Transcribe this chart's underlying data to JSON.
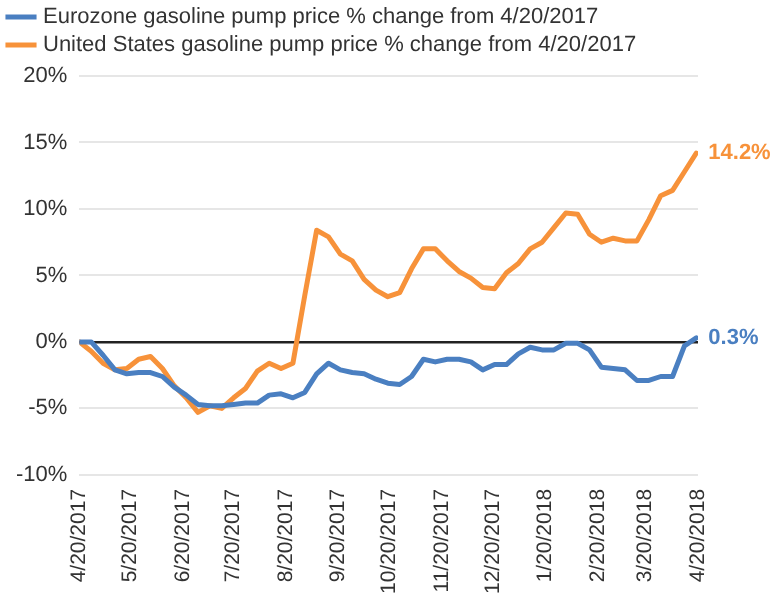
{
  "chart_data": {
    "type": "line",
    "legend": "top left",
    "grid": "y",
    "marker": "none",
    "line_style": "solid",
    "x": [
      "2017-04-20",
      "2017-04-27",
      "2017-05-04",
      "2017-05-11",
      "2017-05-18",
      "2017-05-25",
      "2017-06-01",
      "2017-06-08",
      "2017-06-15",
      "2017-06-22",
      "2017-06-29",
      "2017-07-06",
      "2017-07-13",
      "2017-07-20",
      "2017-07-27",
      "2017-08-03",
      "2017-08-10",
      "2017-08-17",
      "2017-08-24",
      "2017-08-31",
      "2017-09-07",
      "2017-09-14",
      "2017-09-21",
      "2017-09-28",
      "2017-10-05",
      "2017-10-12",
      "2017-10-19",
      "2017-10-26",
      "2017-11-02",
      "2017-11-09",
      "2017-11-16",
      "2017-11-23",
      "2017-11-30",
      "2017-12-07",
      "2017-12-14",
      "2017-12-21",
      "2017-12-28",
      "2018-01-04",
      "2018-01-11",
      "2018-01-18",
      "2018-01-25",
      "2018-02-01",
      "2018-02-08",
      "2018-02-15",
      "2018-02-22",
      "2018-03-01",
      "2018-03-08",
      "2018-03-15",
      "2018-03-22",
      "2018-03-29",
      "2018-04-05",
      "2018-04-12",
      "2018-04-19"
    ],
    "series": [
      {
        "name": "Eurozone gasoline pump price % change from 4/20/2017",
        "color": "#4a7fc1",
        "values": [
          0,
          0,
          -1.0,
          -2.1,
          -2.4,
          -2.3,
          -2.3,
          -2.6,
          -3.4,
          -4.0,
          -4.7,
          -4.8,
          -4.8,
          -4.7,
          -4.6,
          -4.6,
          -4.0,
          -3.9,
          -4.2,
          -3.8,
          -2.4,
          -1.6,
          -2.1,
          -2.3,
          -2.4,
          -2.8,
          -3.1,
          -3.2,
          -2.6,
          -1.3,
          -1.5,
          -1.3,
          -1.3,
          -1.5,
          -2.1,
          -1.7,
          -1.7,
          -0.9,
          -0.4,
          -0.6,
          -0.6,
          -0.1,
          -0.1,
          -0.6,
          -1.9,
          -2.0,
          -2.1,
          -2.9,
          -2.9,
          -2.6,
          -2.6,
          -0.3,
          0.3
        ],
        "value_labels": [
          null,
          null,
          null,
          null,
          null,
          null,
          null,
          null,
          null,
          null,
          null,
          null,
          null,
          null,
          null,
          null,
          null,
          null,
          null,
          null,
          null,
          null,
          null,
          null,
          null,
          null,
          null,
          null,
          null,
          null,
          null,
          null,
          null,
          null,
          null,
          null,
          null,
          null,
          null,
          null,
          null,
          null,
          null,
          null,
          null,
          null,
          null,
          null,
          null,
          null,
          null,
          null,
          "0.3%"
        ]
      },
      {
        "name": "United States gasoline pump price % change from 4/20/2017",
        "color": "#f7923a",
        "values": [
          0,
          -0.7,
          -1.6,
          -2.1,
          -2.0,
          -1.3,
          -1.1,
          -2.0,
          -3.3,
          -4.2,
          -5.3,
          -4.8,
          -5.0,
          -4.2,
          -3.5,
          -2.2,
          -1.6,
          -2.0,
          -1.6,
          3.5,
          8.4,
          7.9,
          6.6,
          6.1,
          4.7,
          3.9,
          3.4,
          3.7,
          5.5,
          7.0,
          7.0,
          6.1,
          5.3,
          4.8,
          4.1,
          4.0,
          5.2,
          5.9,
          7.0,
          7.5,
          8.6,
          9.7,
          9.6,
          8.1,
          7.5,
          7.8,
          7.6,
          7.6,
          9.2,
          11.0,
          11.4,
          12.8,
          14.2
        ],
        "value_labels": [
          null,
          null,
          null,
          null,
          null,
          null,
          null,
          null,
          null,
          null,
          null,
          null,
          null,
          null,
          null,
          null,
          null,
          null,
          null,
          null,
          null,
          null,
          null,
          null,
          null,
          null,
          null,
          null,
          null,
          null,
          null,
          null,
          null,
          null,
          null,
          null,
          null,
          null,
          null,
          null,
          null,
          null,
          null,
          null,
          null,
          null,
          null,
          null,
          null,
          null,
          null,
          null,
          "14.2%"
        ]
      }
    ],
    "xlim": [
      "2017-04-20",
      "2018-04-20"
    ],
    "xticks": [
      {
        "value": "2017-04-20",
        "label": "4/20/2017"
      },
      {
        "value": "2017-05-20",
        "label": "5/20/2017"
      },
      {
        "value": "2017-06-20",
        "label": "6/20/2017"
      },
      {
        "value": "2017-07-20",
        "label": "7/20/2017"
      },
      {
        "value": "2017-08-20",
        "label": "8/20/2017"
      },
      {
        "value": "2017-09-20",
        "label": "9/20/2017"
      },
      {
        "value": "2017-10-20",
        "label": "10/20/2017"
      },
      {
        "value": "2017-11-20",
        "label": "11/20/2017"
      },
      {
        "value": "2017-12-20",
        "label": "12/20/2017"
      },
      {
        "value": "2018-01-20",
        "label": "1/20/2018"
      },
      {
        "value": "2018-02-20",
        "label": "2/20/2018"
      },
      {
        "value": "2018-03-20",
        "label": "3/20/2018"
      },
      {
        "value": "2018-04-20",
        "label": "4/20/2018"
      }
    ],
    "ylim": [
      -10,
      20
    ],
    "yticks": [
      {
        "value": -10,
        "label": "-10%"
      },
      {
        "value": -5,
        "label": "-5%"
      },
      {
        "value": 0,
        "label": "0%"
      },
      {
        "value": 5,
        "label": "5%"
      },
      {
        "value": 10,
        "label": "10%"
      },
      {
        "value": 15,
        "label": "15%"
      },
      {
        "value": 20,
        "label": "20%"
      }
    ]
  }
}
